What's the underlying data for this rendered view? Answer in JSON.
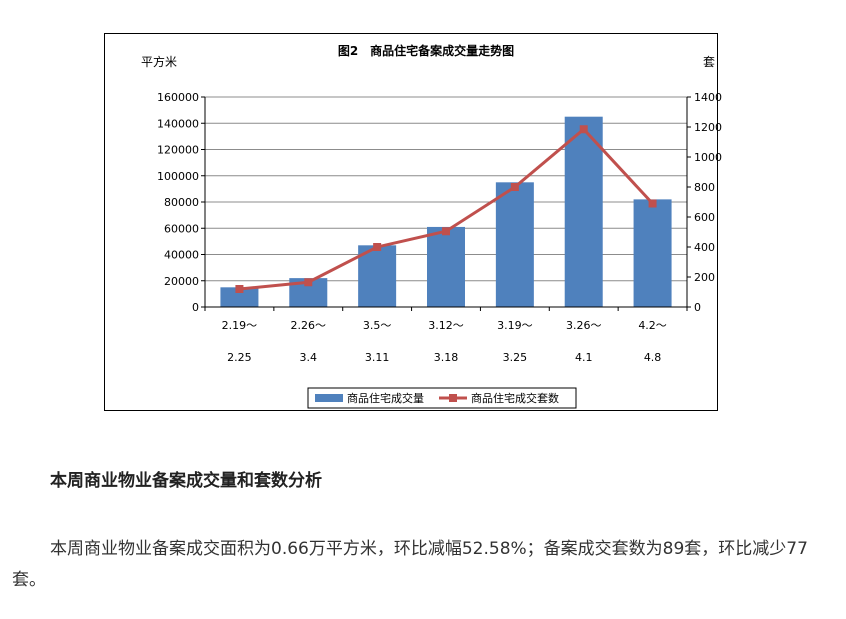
{
  "chart_data": {
    "type": "bar+line",
    "title": "图2　商品住宅备案成交量走势图",
    "y_left_unit": "平方米",
    "y_right_unit": "套",
    "categories": [
      [
        "2.19～",
        "2.25"
      ],
      [
        "2.26～",
        "3.4"
      ],
      [
        "3.5～",
        "3.11"
      ],
      [
        "3.12～",
        "3.18"
      ],
      [
        "3.19～",
        "3.25"
      ],
      [
        "3.26～",
        "4.1"
      ],
      [
        "4.2～",
        "4.8"
      ]
    ],
    "y_left_ticks": [
      "0",
      "20000",
      "40000",
      "60000",
      "80000",
      "100000",
      "120000",
      "140000",
      "160000"
    ],
    "y_right_ticks": [
      "0",
      "200",
      "400",
      "600",
      "800",
      "1000",
      "1200",
      "1400"
    ],
    "ylim_left": [
      0,
      160000
    ],
    "ylim_right": [
      0,
      1400
    ],
    "series": [
      {
        "name": "商品住宅成交量",
        "type": "bar",
        "axis": "left",
        "color": "#4f81bd",
        "values": [
          15000,
          22000,
          47000,
          61000,
          95000,
          145000,
          82000
        ]
      },
      {
        "name": "商品住宅成交套数",
        "type": "line",
        "axis": "right",
        "color": "#c0504d",
        "values": [
          120,
          165,
          400,
          505,
          800,
          1185,
          690
        ]
      }
    ],
    "legend_position": "bottom",
    "grid": true
  },
  "article": {
    "heading": "本周商业物业备案成交量和套数分析",
    "paragraph": "本周商业物业备案成交面积为0.66万平方米，环比减幅52.58%；备案成交套数为89套，环比减少77套。"
  }
}
